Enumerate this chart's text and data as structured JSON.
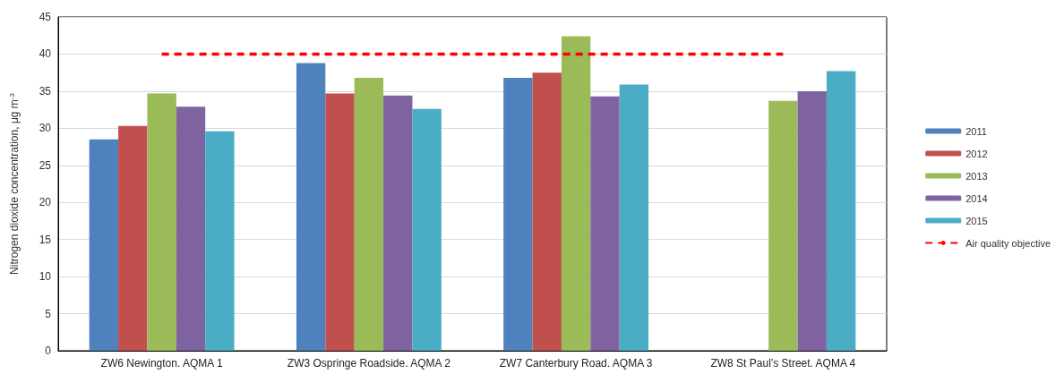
{
  "chart_data": {
    "type": "bar",
    "ylabel": "Nitrogen dioxide concentration, μg m$^{-3}$",
    "categories": [
      "ZW6 Newington. AQMA 1",
      "ZW3 Ospringe Roadside. AQMA 2",
      "ZW7 Canterbury Road. AQMA 3",
      "ZW8 St Paul’s Street. AQMA 4"
    ],
    "series": [
      {
        "name": "2011",
        "color": "#4f81bd",
        "values": [
          28.5,
          38.8,
          36.8,
          null
        ]
      },
      {
        "name": "2012",
        "color": "#c0504d",
        "values": [
          30.3,
          34.7,
          37.5,
          null
        ]
      },
      {
        "name": "2013",
        "color": "#9bbb59",
        "values": [
          34.7,
          36.8,
          42.4,
          33.7
        ]
      },
      {
        "name": "2014",
        "color": "#8064a2",
        "values": [
          32.9,
          34.4,
          34.3,
          35.0
        ]
      },
      {
        "name": "2015",
        "color": "#4bacc6",
        "values": [
          29.6,
          32.6,
          35.9,
          37.7
        ]
      },
      {
        "name": "Air quality objective",
        "type": "line",
        "color": "#ff0000",
        "line_style": "dashed",
        "marker": "none",
        "values": [
          40,
          40,
          40,
          40
        ]
      }
    ],
    "ylim": [
      0,
      45
    ],
    "yticks": [
      0,
      5,
      10,
      15,
      20,
      25,
      30,
      35,
      40,
      45
    ],
    "grid": "y",
    "legend": "right"
  }
}
